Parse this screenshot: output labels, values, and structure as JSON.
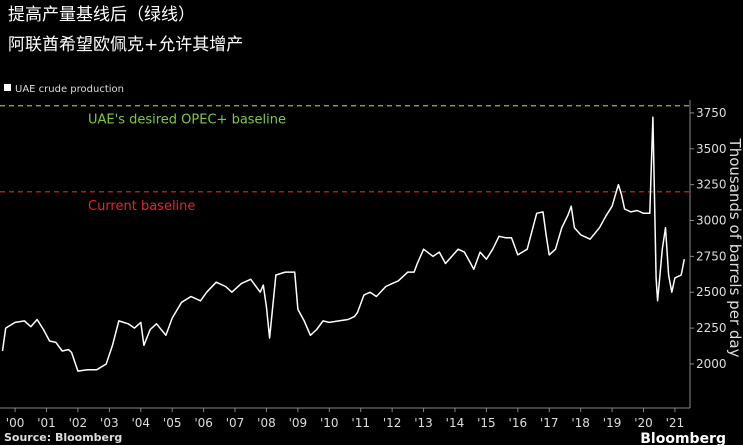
{
  "chart_data": {
    "type": "line",
    "title": "提高产量基线后（绿线）",
    "subtitle": "阿联酋希望欧佩克+允许其增产",
    "y_label": "Thousands of barrels per day",
    "source": "Source: Bloomberg",
    "brand": "Bloomberg",
    "xlim": [
      1999.52,
      2021.48
    ],
    "ylim": [
      1693,
      3840
    ],
    "xticks": [
      {
        "value": 2000,
        "label": "'00"
      },
      {
        "value": 2001,
        "label": "'01"
      },
      {
        "value": 2002,
        "label": "'02"
      },
      {
        "value": 2003,
        "label": "'03"
      },
      {
        "value": 2004,
        "label": "'04"
      },
      {
        "value": 2005,
        "label": "'05"
      },
      {
        "value": 2006,
        "label": "'06"
      },
      {
        "value": 2007,
        "label": "'07"
      },
      {
        "value": 2008,
        "label": "'08"
      },
      {
        "value": 2009,
        "label": "'09"
      },
      {
        "value": 2010,
        "label": "'10"
      },
      {
        "value": 2011,
        "label": "'11"
      },
      {
        "value": 2012,
        "label": "'12"
      },
      {
        "value": 2013,
        "label": "'13"
      },
      {
        "value": 2014,
        "label": "'14"
      },
      {
        "value": 2015,
        "label": "'15"
      },
      {
        "value": 2016,
        "label": "'16"
      },
      {
        "value": 2017,
        "label": "'17"
      },
      {
        "value": 2018,
        "label": "'18"
      },
      {
        "value": 2019,
        "label": "'19"
      },
      {
        "value": 2020,
        "label": "'20"
      },
      {
        "value": 2021,
        "label": "'21"
      }
    ],
    "yticks": [
      2000,
      2250,
      2500,
      2750,
      3000,
      3250,
      3500,
      3750
    ],
    "baselines": [
      {
        "value": 3800,
        "label": "UAE's desired OPEC+ baseline",
        "color": "#7ccc3a"
      },
      {
        "value": 3200,
        "label": "Current baseline",
        "color": "#e8242a"
      }
    ],
    "x": [
      1999.6,
      1999.7,
      2000.0,
      2000.3,
      2000.5,
      2000.7,
      2000.9,
      2001.1,
      2001.3,
      2001.5,
      2001.7,
      2001.8,
      2002.0,
      2002.3,
      2002.6,
      2002.9,
      2003.1,
      2003.3,
      2003.6,
      2003.8,
      2004.0,
      2004.1,
      2004.3,
      2004.5,
      2004.8,
      2005.0,
      2005.3,
      2005.6,
      2005.9,
      2006.1,
      2006.4,
      2006.7,
      2006.9,
      2007.2,
      2007.5,
      2007.8,
      2007.9,
      2008.0,
      2008.1,
      2008.3,
      2008.6,
      2008.9,
      2009.0,
      2009.2,
      2009.4,
      2009.6,
      2009.8,
      2010.0,
      2010.3,
      2010.6,
      2010.8,
      2010.9,
      2011.1,
      2011.3,
      2011.5,
      2011.8,
      2012.0,
      2012.2,
      2012.5,
      2012.7,
      2012.8,
      2013.0,
      2013.3,
      2013.5,
      2013.7,
      2013.9,
      2014.1,
      2014.3,
      2014.5,
      2014.6,
      2014.8,
      2015.0,
      2015.2,
      2015.4,
      2015.6,
      2015.8,
      2016.0,
      2016.3,
      2016.6,
      2016.8,
      2016.9,
      2017.0,
      2017.2,
      2017.4,
      2017.6,
      2017.7,
      2017.8,
      2018.0,
      2018.3,
      2018.6,
      2018.8,
      2019.0,
      2019.2,
      2019.3,
      2019.4,
      2019.6,
      2019.8,
      2020.0,
      2020.2,
      2020.3,
      2020.4,
      2020.45,
      2020.6,
      2020.7,
      2020.8,
      2020.9,
      2021.0,
      2021.2,
      2021.3
    ],
    "series": [
      {
        "name": "UAE crude production",
        "color": "#ffffff",
        "values": [
          2090,
          2250,
          2290,
          2300,
          2260,
          2310,
          2240,
          2160,
          2150,
          2090,
          2100,
          2080,
          1950,
          1960,
          1960,
          2000,
          2130,
          2300,
          2280,
          2250,
          2290,
          2130,
          2240,
          2280,
          2200,
          2320,
          2430,
          2470,
          2440,
          2500,
          2570,
          2540,
          2500,
          2560,
          2590,
          2500,
          2550,
          2400,
          2180,
          2620,
          2640,
          2640,
          2380,
          2300,
          2200,
          2240,
          2300,
          2290,
          2300,
          2310,
          2330,
          2360,
          2480,
          2500,
          2470,
          2540,
          2560,
          2580,
          2640,
          2640,
          2700,
          2800,
          2750,
          2780,
          2700,
          2750,
          2800,
          2780,
          2700,
          2660,
          2780,
          2730,
          2800,
          2890,
          2880,
          2880,
          2760,
          2800,
          3050,
          3060,
          2900,
          2760,
          2800,
          2950,
          3040,
          3100,
          2950,
          2900,
          2870,
          2950,
          3030,
          3100,
          3250,
          3180,
          3080,
          3060,
          3070,
          3050,
          3050,
          3720,
          2600,
          2440,
          2800,
          2950,
          2620,
          2500,
          2600,
          2620,
          2730
        ]
      }
    ]
  }
}
